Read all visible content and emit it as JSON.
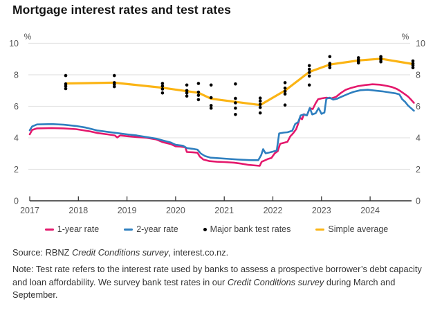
{
  "title": "Mortgage interest rates and test rates",
  "legend": {
    "items": [
      {
        "label": "1-year rate",
        "swatch": "line",
        "color": "#e4186c"
      },
      {
        "label": "2-year rate",
        "swatch": "line",
        "color": "#2e7fbf"
      },
      {
        "label": "Major bank test rates",
        "swatch": "dot",
        "color": "#000000"
      },
      {
        "label": "Simple average",
        "swatch": "line",
        "color": "#fbb414"
      }
    ]
  },
  "source": {
    "prefix": "Source: RBNZ ",
    "italic": "Credit Conditions survey",
    "suffix": ", interest.co.nz."
  },
  "note": {
    "prefix": "Note: Test rate refers to the interest rate used by banks to assess a prospective borrower’s debt capacity and loan affordability. We survey bank test rates in our ",
    "italic": "Credit Conditions survey",
    "suffix": " during March and September."
  },
  "chart_data": {
    "type": "line",
    "title": "Mortgage interest rates and test rates",
    "ylabel_symbol": "%",
    "ylim": [
      0,
      10
    ],
    "xlim": [
      2017,
      2025
    ],
    "y_ticks": [
      0,
      2,
      4,
      6,
      8,
      10
    ],
    "x_ticks": [
      2017,
      2018,
      2019,
      2020,
      2021,
      2022,
      2023,
      2024
    ],
    "grid": "horizontal",
    "legend_position": "bottom",
    "colors": {
      "grid": "#e3e3e3",
      "axis": "#2a2a2a",
      "tick_text": "#555555",
      "dots": "#000000"
    },
    "series": [
      {
        "id": "1-year-rate",
        "name": "1-year rate",
        "color": "#e4186c",
        "width": 2.6,
        "points": [
          [
            2017.0,
            4.22
          ],
          [
            2017.05,
            4.5
          ],
          [
            2017.15,
            4.6
          ],
          [
            2017.45,
            4.62
          ],
          [
            2017.7,
            4.6
          ],
          [
            2017.95,
            4.55
          ],
          [
            2018.1,
            4.48
          ],
          [
            2018.25,
            4.4
          ],
          [
            2018.4,
            4.3
          ],
          [
            2018.6,
            4.22
          ],
          [
            2018.75,
            4.15
          ],
          [
            2018.8,
            4.02
          ],
          [
            2018.86,
            4.15
          ],
          [
            2019.0,
            4.1
          ],
          [
            2019.2,
            4.05
          ],
          [
            2019.4,
            4.0
          ],
          [
            2019.6,
            3.9
          ],
          [
            2019.74,
            3.72
          ],
          [
            2019.9,
            3.6
          ],
          [
            2020.0,
            3.46
          ],
          [
            2020.1,
            3.44
          ],
          [
            2020.2,
            3.4
          ],
          [
            2020.23,
            3.1
          ],
          [
            2020.35,
            3.08
          ],
          [
            2020.45,
            3.05
          ],
          [
            2020.5,
            2.8
          ],
          [
            2020.57,
            2.62
          ],
          [
            2020.7,
            2.52
          ],
          [
            2020.85,
            2.48
          ],
          [
            2021.0,
            2.46
          ],
          [
            2021.2,
            2.42
          ],
          [
            2021.35,
            2.36
          ],
          [
            2021.5,
            2.28
          ],
          [
            2021.65,
            2.24
          ],
          [
            2021.73,
            2.22
          ],
          [
            2021.77,
            2.48
          ],
          [
            2021.83,
            2.56
          ],
          [
            2021.9,
            2.66
          ],
          [
            2021.97,
            2.72
          ],
          [
            2022.04,
            3.02
          ],
          [
            2022.1,
            3.15
          ],
          [
            2022.15,
            3.62
          ],
          [
            2022.25,
            3.7
          ],
          [
            2022.3,
            3.75
          ],
          [
            2022.36,
            4.1
          ],
          [
            2022.42,
            4.3
          ],
          [
            2022.48,
            4.55
          ],
          [
            2022.52,
            4.9
          ],
          [
            2022.56,
            5.28
          ],
          [
            2022.6,
            5.18
          ],
          [
            2022.64,
            5.5
          ],
          [
            2022.7,
            5.42
          ],
          [
            2022.76,
            5.88
          ],
          [
            2022.82,
            5.82
          ],
          [
            2022.88,
            6.2
          ],
          [
            2022.93,
            6.45
          ],
          [
            2023.0,
            6.5
          ],
          [
            2023.1,
            6.55
          ],
          [
            2023.2,
            6.5
          ],
          [
            2023.3,
            6.6
          ],
          [
            2023.4,
            6.85
          ],
          [
            2023.5,
            7.05
          ],
          [
            2023.62,
            7.18
          ],
          [
            2023.75,
            7.28
          ],
          [
            2023.9,
            7.35
          ],
          [
            2024.05,
            7.4
          ],
          [
            2024.2,
            7.37
          ],
          [
            2024.33,
            7.3
          ],
          [
            2024.45,
            7.22
          ],
          [
            2024.55,
            7.1
          ],
          [
            2024.63,
            6.95
          ],
          [
            2024.7,
            6.8
          ],
          [
            2024.78,
            6.62
          ],
          [
            2024.84,
            6.42
          ],
          [
            2024.9,
            6.22
          ]
        ]
      },
      {
        "id": "2-year-rate",
        "name": "2-year rate",
        "color": "#2e7fbf",
        "width": 2.6,
        "points": [
          [
            2017.0,
            4.48
          ],
          [
            2017.05,
            4.72
          ],
          [
            2017.15,
            4.85
          ],
          [
            2017.45,
            4.87
          ],
          [
            2017.7,
            4.83
          ],
          [
            2017.95,
            4.75
          ],
          [
            2018.15,
            4.65
          ],
          [
            2018.38,
            4.47
          ],
          [
            2018.6,
            4.38
          ],
          [
            2018.8,
            4.3
          ],
          [
            2019.0,
            4.22
          ],
          [
            2019.2,
            4.15
          ],
          [
            2019.4,
            4.05
          ],
          [
            2019.6,
            3.95
          ],
          [
            2019.74,
            3.83
          ],
          [
            2019.9,
            3.7
          ],
          [
            2020.0,
            3.56
          ],
          [
            2020.15,
            3.5
          ],
          [
            2020.23,
            3.35
          ],
          [
            2020.35,
            3.3
          ],
          [
            2020.45,
            3.25
          ],
          [
            2020.52,
            3.0
          ],
          [
            2020.6,
            2.85
          ],
          [
            2020.72,
            2.74
          ],
          [
            2020.9,
            2.7
          ],
          [
            2021.1,
            2.66
          ],
          [
            2021.3,
            2.62
          ],
          [
            2021.55,
            2.58
          ],
          [
            2021.7,
            2.58
          ],
          [
            2021.76,
            2.9
          ],
          [
            2021.8,
            3.28
          ],
          [
            2021.85,
            3.02
          ],
          [
            2021.92,
            3.06
          ],
          [
            2022.0,
            3.12
          ],
          [
            2022.08,
            3.2
          ],
          [
            2022.13,
            4.28
          ],
          [
            2022.22,
            4.33
          ],
          [
            2022.3,
            4.35
          ],
          [
            2022.4,
            4.45
          ],
          [
            2022.46,
            4.88
          ],
          [
            2022.52,
            5.0
          ],
          [
            2022.57,
            5.42
          ],
          [
            2022.63,
            5.48
          ],
          [
            2022.7,
            5.42
          ],
          [
            2022.76,
            5.9
          ],
          [
            2022.81,
            5.48
          ],
          [
            2022.88,
            5.56
          ],
          [
            2022.94,
            5.88
          ],
          [
            2023.0,
            5.52
          ],
          [
            2023.06,
            5.6
          ],
          [
            2023.1,
            6.48
          ],
          [
            2023.17,
            6.55
          ],
          [
            2023.24,
            6.42
          ],
          [
            2023.32,
            6.48
          ],
          [
            2023.42,
            6.62
          ],
          [
            2023.54,
            6.78
          ],
          [
            2023.66,
            6.92
          ],
          [
            2023.8,
            7.02
          ],
          [
            2023.95,
            7.05
          ],
          [
            2024.1,
            7.0
          ],
          [
            2024.25,
            6.95
          ],
          [
            2024.4,
            6.88
          ],
          [
            2024.52,
            6.82
          ],
          [
            2024.6,
            6.76
          ],
          [
            2024.66,
            6.45
          ],
          [
            2024.72,
            6.28
          ],
          [
            2024.78,
            6.05
          ],
          [
            2024.84,
            5.88
          ],
          [
            2024.9,
            5.72
          ]
        ]
      },
      {
        "id": "simple-average",
        "name": "Simple average",
        "color": "#fbb414",
        "width": 3.2,
        "points": [
          [
            2017.74,
            7.45
          ],
          [
            2018.74,
            7.5
          ],
          [
            2019.73,
            7.18
          ],
          [
            2020.23,
            6.96
          ],
          [
            2020.47,
            6.86
          ],
          [
            2020.73,
            6.48
          ],
          [
            2021.23,
            6.28
          ],
          [
            2021.74,
            6.08
          ],
          [
            2022.25,
            7.0
          ],
          [
            2022.75,
            8.18
          ],
          [
            2023.17,
            8.65
          ],
          [
            2023.76,
            8.91
          ],
          [
            2024.22,
            9.02
          ],
          [
            2024.88,
            8.68
          ]
        ]
      }
    ],
    "test_rate_clusters": [
      {
        "x": 2017.74,
        "values": [
          7.95,
          7.42,
          7.28,
          7.12
        ]
      },
      {
        "x": 2018.74,
        "values": [
          7.95,
          7.5,
          7.38,
          7.25
        ]
      },
      {
        "x": 2019.73,
        "values": [
          7.45,
          7.28,
          7.1,
          6.85
        ]
      },
      {
        "x": 2020.23,
        "values": [
          7.35,
          7.0,
          6.85,
          6.65
        ]
      },
      {
        "x": 2020.47,
        "values": [
          7.45,
          6.9,
          6.7,
          6.42
        ]
      },
      {
        "x": 2020.73,
        "values": [
          7.35,
          6.55,
          6.05,
          5.88
        ]
      },
      {
        "x": 2021.23,
        "values": [
          7.42,
          6.5,
          6.22,
          5.88,
          5.48
        ]
      },
      {
        "x": 2021.74,
        "values": [
          6.52,
          6.33,
          6.12,
          5.93,
          5.58
        ]
      },
      {
        "x": 2022.25,
        "values": [
          7.5,
          7.15,
          6.95,
          6.78,
          6.08
        ]
      },
      {
        "x": 2022.75,
        "values": [
          8.58,
          8.35,
          8.15,
          7.92,
          7.35
        ]
      },
      {
        "x": 2023.17,
        "values": [
          9.15,
          8.72,
          8.6,
          8.45
        ]
      },
      {
        "x": 2023.76,
        "values": [
          9.08,
          8.95,
          8.85,
          8.75
        ]
      },
      {
        "x": 2024.22,
        "values": [
          9.15,
          9.05,
          8.95,
          8.82
        ]
      },
      {
        "x": 2024.88,
        "values": [
          8.88,
          8.72,
          8.6,
          8.45
        ]
      }
    ]
  }
}
